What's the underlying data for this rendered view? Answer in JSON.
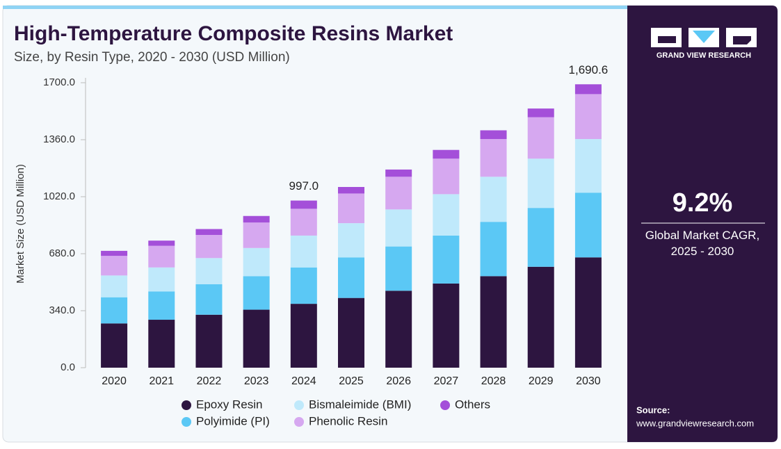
{
  "chart_data": {
    "type": "stacked_bar",
    "title": "High-Temperature Composite Resins Market",
    "subtitle": "Size, by Resin Type, 2020 - 2030 (USD Million)",
    "y_label": "Market Size (USD Million)",
    "categories": [
      "2020",
      "2021",
      "2022",
      "2023",
      "2024",
      "2025",
      "2026",
      "2027",
      "2028",
      "2029",
      "2030"
    ],
    "series": [
      {
        "name": "Epoxy Resin",
        "color": "#2d1540",
        "values": [
          264,
          286,
          316,
          346,
          381,
          416,
          459,
          502,
          546,
          602,
          658
        ]
      },
      {
        "name": "Polyimide (PI)",
        "color": "#5bc8f5",
        "values": [
          156,
          169,
          182,
          200,
          217,
          242,
          264,
          286,
          324,
          351,
          386
        ]
      },
      {
        "name": "Bismaleimide (BMI)",
        "color": "#bfe9fb",
        "values": [
          130,
          143,
          156,
          168,
          190,
          204,
          221,
          247,
          269,
          294,
          320
        ]
      },
      {
        "name": "Phenolic Resin",
        "color": "#d6a8f0",
        "values": [
          117,
          129,
          138,
          152,
          160,
          177,
          195,
          212,
          225,
          247,
          268
        ]
      },
      {
        "name": "Others",
        "color": "#a44fd9",
        "values": [
          30,
          31,
          35,
          39,
          49,
          39,
          43,
          52,
          52,
          52,
          58.6
        ]
      }
    ],
    "annotations": [
      {
        "x": "2024",
        "value": 997,
        "label": "997.0"
      },
      {
        "x": "2030",
        "value": 1690.6,
        "label": "1,690.6"
      }
    ],
    "ylim": [
      0,
      1700
    ],
    "yticks": [
      {
        "value": 0,
        "label": "0.0"
      },
      {
        "value": 340,
        "label": "340.0"
      },
      {
        "value": 680,
        "label": "680.0"
      },
      {
        "value": 1020,
        "label": "1020.0"
      },
      {
        "value": 1360,
        "label": "1360.0"
      },
      {
        "value": 1700,
        "label": "1700.0"
      }
    ],
    "grid": false
  },
  "sidebar": {
    "brand": "GRAND VIEW RESEARCH",
    "cagr": "9.2%",
    "cagr_label": "Global Market CAGR, 2025 - 2030",
    "source_label": "Source:",
    "source": "www.grandviewresearch.com"
  }
}
